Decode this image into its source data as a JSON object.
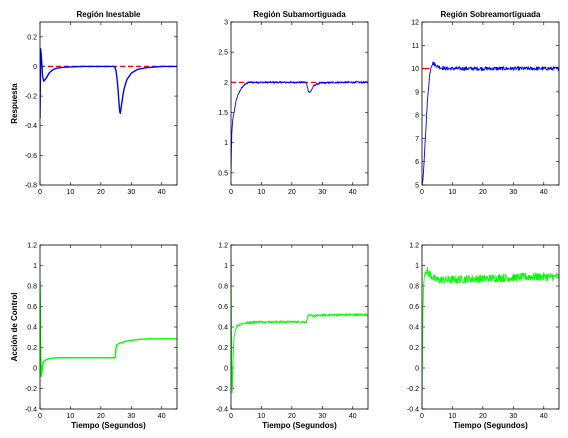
{
  "figure": {
    "row_ylabels": [
      "Respuesta",
      "Acción de Control"
    ],
    "xlabel": "Tiempo (Segundos)"
  },
  "chart_data": [
    {
      "type": "line",
      "title": "Región Inestable",
      "ylabel": "Respuesta",
      "xlabel": "",
      "xlim": [
        0,
        45
      ],
      "ylim": [
        -0.8,
        0.3
      ],
      "xticks": [
        0,
        10,
        20,
        30,
        40
      ],
      "yticks": [
        -0.8,
        -0.6,
        -0.4,
        -0.2,
        0,
        0.2
      ],
      "reference": {
        "value": 0,
        "x": [
          0,
          45
        ],
        "color": "#ff0000",
        "style": "dashed"
      },
      "series": [
        {
          "color": "#0000ff",
          "x": [
            0,
            0.2,
            0.5,
            0.8,
            1.2,
            2,
            3,
            4,
            5,
            6,
            8,
            10,
            14,
            18,
            22,
            24.5,
            25,
            25.5,
            26,
            26.3,
            26.7,
            27.5,
            28.5,
            30,
            32,
            35,
            40,
            45
          ],
          "y": [
            -0.35,
            0.12,
            0.06,
            -0.06,
            -0.1,
            -0.08,
            -0.045,
            -0.025,
            -0.015,
            -0.01,
            -0.005,
            -0.003,
            0,
            0,
            0,
            0,
            -0.03,
            -0.12,
            -0.26,
            -0.33,
            -0.27,
            -0.16,
            -0.09,
            -0.045,
            -0.02,
            -0.008,
            0,
            0
          ]
        }
      ]
    },
    {
      "type": "line",
      "title": "Región Subamortiguada",
      "ylabel": "",
      "xlabel": "",
      "xlim": [
        0,
        45
      ],
      "ylim": [
        0.3,
        3
      ],
      "xticks": [
        0,
        10,
        20,
        30,
        40
      ],
      "yticks": [
        0.5,
        1,
        1.5,
        2,
        2.5,
        3
      ],
      "reference": {
        "value": 2,
        "x": [
          0,
          45
        ],
        "color": "#ff0000",
        "style": "dashed"
      },
      "series": [
        {
          "color": "#0000ff",
          "noise": 0.015,
          "x": [
            0,
            0.2,
            0.5,
            0.8,
            1,
            1.5,
            2,
            3,
            4,
            5,
            6,
            8,
            10,
            15,
            20,
            24.5,
            25,
            25.4,
            26,
            26.5,
            27,
            28,
            30,
            35,
            40,
            45
          ],
          "y": [
            0.5,
            1.1,
            1.35,
            1.45,
            1.5,
            1.65,
            1.75,
            1.87,
            1.94,
            1.98,
            2.0,
            2.0,
            2.0,
            2.0,
            2.0,
            2.0,
            1.95,
            1.86,
            1.83,
            1.88,
            1.93,
            1.97,
            1.99,
            2.0,
            2.0,
            2.0
          ]
        }
      ]
    },
    {
      "type": "line",
      "title": "Región Sobreamortiguada",
      "ylabel": "",
      "xlabel": "",
      "xlim": [
        0,
        45
      ],
      "ylim": [
        5,
        12
      ],
      "xticks": [
        0,
        10,
        20,
        30,
        40
      ],
      "yticks": [
        5,
        6,
        7,
        8,
        9,
        10,
        11,
        12
      ],
      "reference": {
        "value": 10,
        "x": [
          0,
          2.5
        ],
        "color": "#ff0000",
        "style": "solid"
      },
      "series": [
        {
          "color": "#0000ff",
          "noise": 0.08,
          "x": [
            0,
            0.3,
            0.6,
            1,
            1.5,
            2,
            2.5,
            3,
            3.5,
            4,
            5,
            6,
            8,
            10,
            15,
            20,
            25,
            30,
            35,
            40,
            45
          ],
          "y": [
            5,
            5.2,
            5.8,
            6.8,
            8.0,
            9.0,
            9.7,
            10.1,
            10.25,
            10.2,
            10.1,
            10.05,
            10.0,
            10.0,
            10.0,
            10.0,
            10.0,
            10.0,
            10.0,
            10.0,
            10.0
          ]
        }
      ]
    },
    {
      "type": "line",
      "title": "",
      "ylabel": "Acción de Control",
      "xlabel": "Tiempo (Segundos)",
      "xlim": [
        0,
        45
      ],
      "ylim": [
        -0.4,
        1.2
      ],
      "xticks": [
        0,
        10,
        20,
        30,
        40
      ],
      "yticks": [
        -0.4,
        -0.2,
        0,
        0.2,
        0.4,
        0.6,
        0.8,
        1,
        1.2
      ],
      "series": [
        {
          "color": "#00ff00",
          "x": [
            0,
            0.1,
            0.25,
            0.5,
            0.8,
            1.2,
            2,
            3,
            5,
            8,
            12,
            16,
            20,
            24.8,
            25,
            25.4,
            26,
            27,
            28,
            30,
            33,
            36,
            40,
            45
          ],
          "y": [
            0.85,
            0.6,
            -0.05,
            -0.1,
            0.02,
            0.06,
            0.08,
            0.09,
            0.1,
            0.1,
            0.1,
            0.1,
            0.1,
            0.1,
            0.22,
            0.23,
            0.24,
            0.25,
            0.26,
            0.27,
            0.28,
            0.285,
            0.285,
            0.285
          ]
        }
      ]
    },
    {
      "type": "line",
      "title": "",
      "ylabel": "",
      "xlabel": "Tiempo (Segundos)",
      "xlim": [
        0,
        45
      ],
      "ylim": [
        -0.4,
        1.2
      ],
      "xticks": [
        0,
        10,
        20,
        30,
        40
      ],
      "yticks": [
        -0.4,
        -0.2,
        0,
        0.2,
        0.4,
        0.6,
        0.8,
        1,
        1.2
      ],
      "series": [
        {
          "color": "#00ff00",
          "noise": 0.012,
          "x": [
            0,
            0.15,
            0.4,
            0.7,
            1,
            1.5,
            2,
            3,
            5,
            8,
            12,
            16,
            20,
            24.8,
            25.2,
            26,
            28,
            30,
            35,
            40,
            45
          ],
          "y": [
            1.1,
            0.3,
            -0.3,
            0.1,
            0.3,
            0.38,
            0.41,
            0.43,
            0.44,
            0.45,
            0.45,
            0.45,
            0.45,
            0.45,
            0.51,
            0.51,
            0.51,
            0.515,
            0.52,
            0.52,
            0.52
          ]
        }
      ]
    },
    {
      "type": "line",
      "title": "",
      "ylabel": "",
      "xlabel": "Tiempo (Segundos)",
      "xlim": [
        0,
        45
      ],
      "ylim": [
        -0.4,
        1.2
      ],
      "xticks": [
        0,
        10,
        20,
        30,
        40
      ],
      "yticks": [
        -0.4,
        -0.2,
        0,
        0.2,
        0.4,
        0.6,
        0.8,
        1,
        1.2
      ],
      "series": [
        {
          "color": "#00ff00",
          "noise": 0.04,
          "x": [
            0,
            0.2,
            0.5,
            0.8,
            1,
            1.5,
            2,
            3,
            4,
            5,
            8,
            10,
            15,
            20,
            25,
            30,
            35,
            40,
            45
          ],
          "y": [
            -0.35,
            0.4,
            0.8,
            0.9,
            0.93,
            0.95,
            0.93,
            0.9,
            0.87,
            0.86,
            0.86,
            0.86,
            0.87,
            0.87,
            0.88,
            0.88,
            0.89,
            0.89,
            0.89
          ]
        }
      ]
    }
  ]
}
